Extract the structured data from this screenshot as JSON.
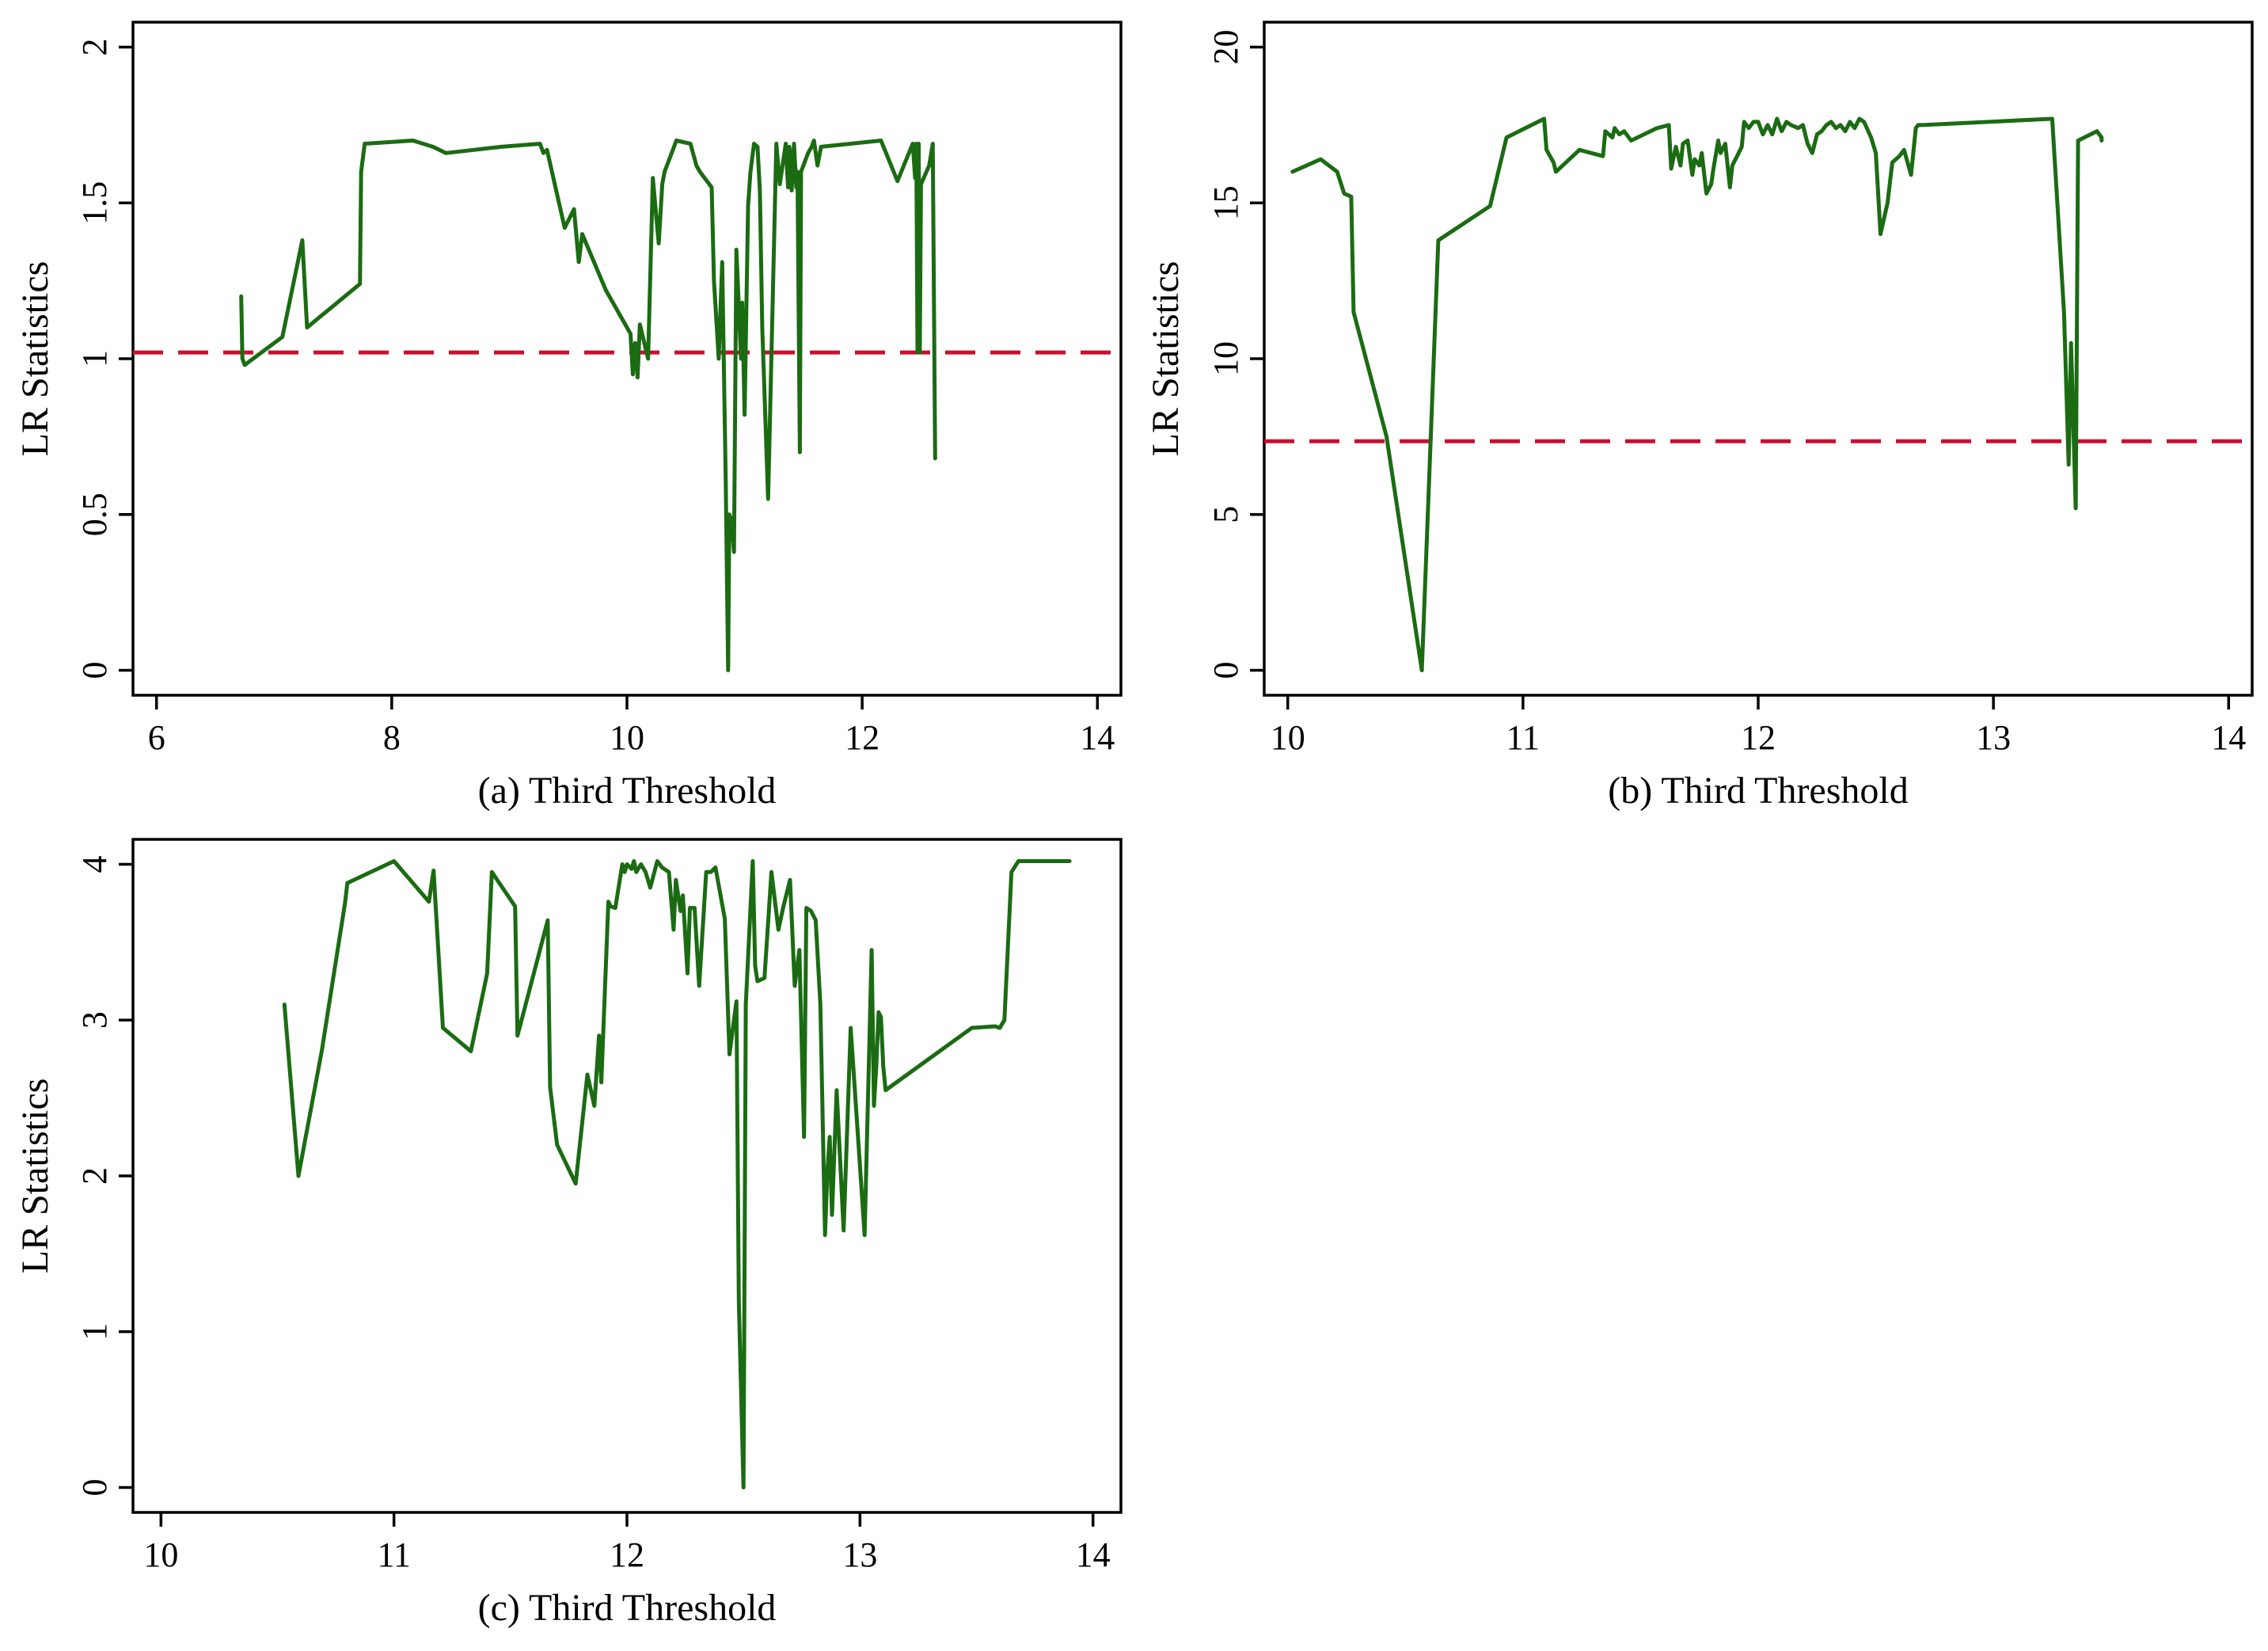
{
  "colors": {
    "series": "#1b6b13",
    "reference": "#c8102e",
    "axis": "#000000"
  },
  "chart_data": [
    {
      "type": "line",
      "panel": "a",
      "title": "",
      "xlabel": "(a) Third Threshold",
      "ylabel": "LR Statistics",
      "xlim": [
        5.8,
        14.2
      ],
      "ylim": [
        -0.08,
        2.08
      ],
      "xticks": [
        6,
        8,
        10,
        12,
        14
      ],
      "xtick_labels": [
        "6",
        "8",
        "10",
        "12",
        "14"
      ],
      "yticks": [
        0,
        0.5,
        1,
        1.5,
        2
      ],
      "ytick_labels": [
        "0",
        "0.5",
        "1",
        "1.5",
        "2"
      ],
      "grid": false,
      "legend": "none",
      "reference_line": {
        "y": 1.02,
        "style": "dashed"
      },
      "series": [
        {
          "name": "LR statistic",
          "x": [
            6.72,
            6.73,
            6.75,
            7.07,
            7.24,
            7.28,
            7.73,
            7.74,
            7.77,
            8.18,
            8.35,
            8.46,
            8.93,
            9.26,
            9.29,
            9.32,
            9.47,
            9.55,
            9.59,
            9.62,
            9.82,
            10.03,
            10.05,
            10.07,
            10.09,
            10.11,
            10.18,
            10.22,
            10.27,
            10.3,
            10.32,
            10.36,
            10.42,
            10.54,
            10.59,
            10.62,
            10.72,
            10.74,
            10.78,
            10.81,
            10.84,
            10.86,
            10.87,
            10.89,
            10.91,
            10.93,
            10.97,
            10.98,
            11.0,
            11.03,
            11.05,
            11.08,
            11.11,
            11.13,
            11.15,
            11.2,
            11.27,
            11.3,
            11.35,
            11.37,
            11.38,
            11.39,
            11.4,
            11.42,
            11.44,
            11.45,
            11.47,
            11.48,
            11.5,
            11.52,
            11.54,
            11.57,
            11.59,
            11.62,
            11.65,
            12.16,
            12.3,
            12.43,
            12.45,
            12.46,
            12.47,
            12.48,
            12.49,
            12.5,
            12.57,
            12.6,
            12.62
          ],
          "values": [
            1.2,
            1.0,
            0.98,
            1.07,
            1.38,
            1.1,
            1.24,
            1.6,
            1.69,
            1.7,
            1.68,
            1.66,
            1.68,
            1.69,
            1.66,
            1.67,
            1.42,
            1.48,
            1.31,
            1.4,
            1.22,
            1.08,
            0.95,
            1.05,
            0.94,
            1.11,
            1.0,
            1.58,
            1.37,
            1.56,
            1.6,
            1.64,
            1.7,
            1.69,
            1.62,
            1.6,
            1.55,
            1.25,
            1.0,
            1.31,
            0.6,
            0.0,
            0.5,
            0.48,
            0.38,
            1.35,
            1.0,
            1.18,
            0.82,
            1.49,
            1.6,
            1.69,
            1.68,
            1.54,
            1.1,
            0.55,
            1.69,
            1.56,
            1.69,
            1.55,
            1.68,
            1.65,
            1.54,
            1.69,
            1.55,
            1.6,
            0.7,
            1.6,
            1.62,
            1.64,
            1.66,
            1.68,
            1.7,
            1.62,
            1.68,
            1.7,
            1.57,
            1.69,
            1.58,
            1.69,
            1.02,
            1.69,
            1.02,
            1.56,
            1.62,
            1.69,
            0.68
          ]
        }
      ]
    },
    {
      "type": "line",
      "panel": "b",
      "title": "",
      "xlabel": "(b) Third Threshold",
      "ylabel": "LR Statistics",
      "xlim": [
        9.9,
        14.1
      ],
      "ylim": [
        -0.8,
        20.8
      ],
      "xticks": [
        10,
        11,
        12,
        13,
        14
      ],
      "xtick_labels": [
        "10",
        "11",
        "12",
        "13",
        "14"
      ],
      "yticks": [
        0,
        5,
        10,
        15,
        20
      ],
      "ytick_labels": [
        "0",
        "5",
        "10",
        "15",
        "20"
      ],
      "grid": false,
      "legend": "none",
      "reference_line": {
        "y": 7.35,
        "style": "dashed"
      },
      "series": [
        {
          "name": "LR statistic",
          "x": [
            10.02,
            10.14,
            10.21,
            10.24,
            10.27,
            10.28,
            10.42,
            10.57,
            10.64,
            10.86,
            10.93,
            11.09,
            11.1,
            11.13,
            11.14,
            11.24,
            11.34,
            11.35,
            11.38,
            11.39,
            11.41,
            11.43,
            11.46,
            11.57,
            11.62,
            11.63,
            11.65,
            11.67,
            11.68,
            11.7,
            11.72,
            11.73,
            11.75,
            11.76,
            11.78,
            11.8,
            11.81,
            11.83,
            11.84,
            11.86,
            11.88,
            11.89,
            11.91,
            11.93,
            11.94,
            11.96,
            11.98,
            12.0,
            12.02,
            12.04,
            12.06,
            12.08,
            12.1,
            12.12,
            12.14,
            12.17,
            12.19,
            12.21,
            12.23,
            12.25,
            12.27,
            12.29,
            12.31,
            12.33,
            12.35,
            12.37,
            12.39,
            12.41,
            12.43,
            12.45,
            12.48,
            12.5,
            12.52,
            12.55,
            12.57,
            12.6,
            12.62,
            12.65,
            12.67,
            12.68,
            12.7,
            13.25,
            13.3,
            13.32,
            13.33,
            13.35,
            13.36,
            13.44,
            13.46,
            13.46
          ],
          "values": [
            16.0,
            16.4,
            16.0,
            15.3,
            15.2,
            11.5,
            7.5,
            0.0,
            13.8,
            14.9,
            17.1,
            17.7,
            16.7,
            16.3,
            16.0,
            16.7,
            16.5,
            17.3,
            17.1,
            17.4,
            17.2,
            17.3,
            17.0,
            17.4,
            17.5,
            16.1,
            16.8,
            16.2,
            16.9,
            17.0,
            15.9,
            16.4,
            16.2,
            16.6,
            15.3,
            15.6,
            16.1,
            17.0,
            16.6,
            16.9,
            15.5,
            16.2,
            16.5,
            16.8,
            17.6,
            17.4,
            17.6,
            17.6,
            17.2,
            17.5,
            17.2,
            17.7,
            17.3,
            17.6,
            17.5,
            17.4,
            17.5,
            16.9,
            16.6,
            17.2,
            17.3,
            17.5,
            17.6,
            17.4,
            17.5,
            17.3,
            17.6,
            17.4,
            17.7,
            17.6,
            17.1,
            16.6,
            14.0,
            15.0,
            16.3,
            16.5,
            16.7,
            15.9,
            17.4,
            17.5,
            17.5,
            17.7,
            11.5,
            6.6,
            10.5,
            5.2,
            17.0,
            17.3,
            17.1,
            17.0
          ]
        }
      ]
    },
    {
      "type": "line",
      "panel": "c",
      "title": "",
      "xlabel": "(c) Third Threshold",
      "ylabel": "LR Statistics",
      "xlim": [
        9.88,
        14.12
      ],
      "ylim": [
        -0.16,
        4.16
      ],
      "xticks": [
        10,
        11,
        12,
        13,
        14
      ],
      "xtick_labels": [
        "10",
        "11",
        "12",
        "13",
        "14"
      ],
      "yticks": [
        0,
        1,
        2,
        3,
        4
      ],
      "ytick_labels": [
        "0",
        "1",
        "2",
        "3",
        "4"
      ],
      "grid": false,
      "legend": "none",
      "reference_line": null,
      "series": [
        {
          "name": "LR statistic",
          "x": [
            10.53,
            10.59,
            10.69,
            10.79,
            10.8,
            11.0,
            11.15,
            11.17,
            11.21,
            11.33,
            11.4,
            11.42,
            11.52,
            11.53,
            11.66,
            11.67,
            11.7,
            11.78,
            11.83,
            11.86,
            11.88,
            11.89,
            11.92,
            11.93,
            11.95,
            11.98,
            11.99,
            12.0,
            12.02,
            12.03,
            12.04,
            12.06,
            12.08,
            12.1,
            12.13,
            12.15,
            12.18,
            12.2,
            12.21,
            12.23,
            12.24,
            12.26,
            12.27,
            12.29,
            12.31,
            12.34,
            12.36,
            12.38,
            12.42,
            12.44,
            12.47,
            12.48,
            12.5,
            12.51,
            12.54,
            12.55,
            12.56,
            12.59,
            12.62,
            12.65,
            12.67,
            12.7,
            12.72,
            12.74,
            12.76,
            12.77,
            12.79,
            12.81,
            12.83,
            12.85,
            12.86,
            12.87,
            12.88,
            12.9,
            12.93,
            12.96,
            13.02,
            13.05,
            13.06,
            13.07,
            13.08,
            13.09,
            13.1,
            13.11,
            13.48,
            13.58,
            13.6,
            13.62,
            13.65,
            13.68,
            13.72,
            13.77,
            13.79,
            13.81,
            13.84,
            13.9
          ],
          "values": [
            3.1,
            2.0,
            2.8,
            3.75,
            3.88,
            4.02,
            3.76,
            3.96,
            2.95,
            2.8,
            3.3,
            3.95,
            3.73,
            2.9,
            3.64,
            2.57,
            2.2,
            1.95,
            2.65,
            2.45,
            2.9,
            2.6,
            3.76,
            3.73,
            3.72,
            4.0,
            3.95,
            4.0,
            3.97,
            4.02,
            3.95,
            4.0,
            3.95,
            3.85,
            4.02,
            3.98,
            3.95,
            3.58,
            3.9,
            3.7,
            3.8,
            3.3,
            3.72,
            3.72,
            3.22,
            3.95,
            3.95,
            3.98,
            3.65,
            2.78,
            3.12,
            1.2,
            0.0,
            3.1,
            4.02,
            3.35,
            3.25,
            3.27,
            3.95,
            3.58,
            3.72,
            3.9,
            3.22,
            3.45,
            2.25,
            3.72,
            3.7,
            3.64,
            3.1,
            1.62,
            2.02,
            2.25,
            1.75,
            2.55,
            1.65,
            2.95,
            1.62,
            3.45,
            2.45,
            2.7,
            3.05,
            3.02,
            2.7,
            2.55,
            2.95,
            2.96,
            2.95,
            3.0,
            3.95,
            4.02,
            4.02,
            4.02,
            4.02,
            4.02,
            4.02,
            4.02
          ]
        }
      ]
    }
  ]
}
